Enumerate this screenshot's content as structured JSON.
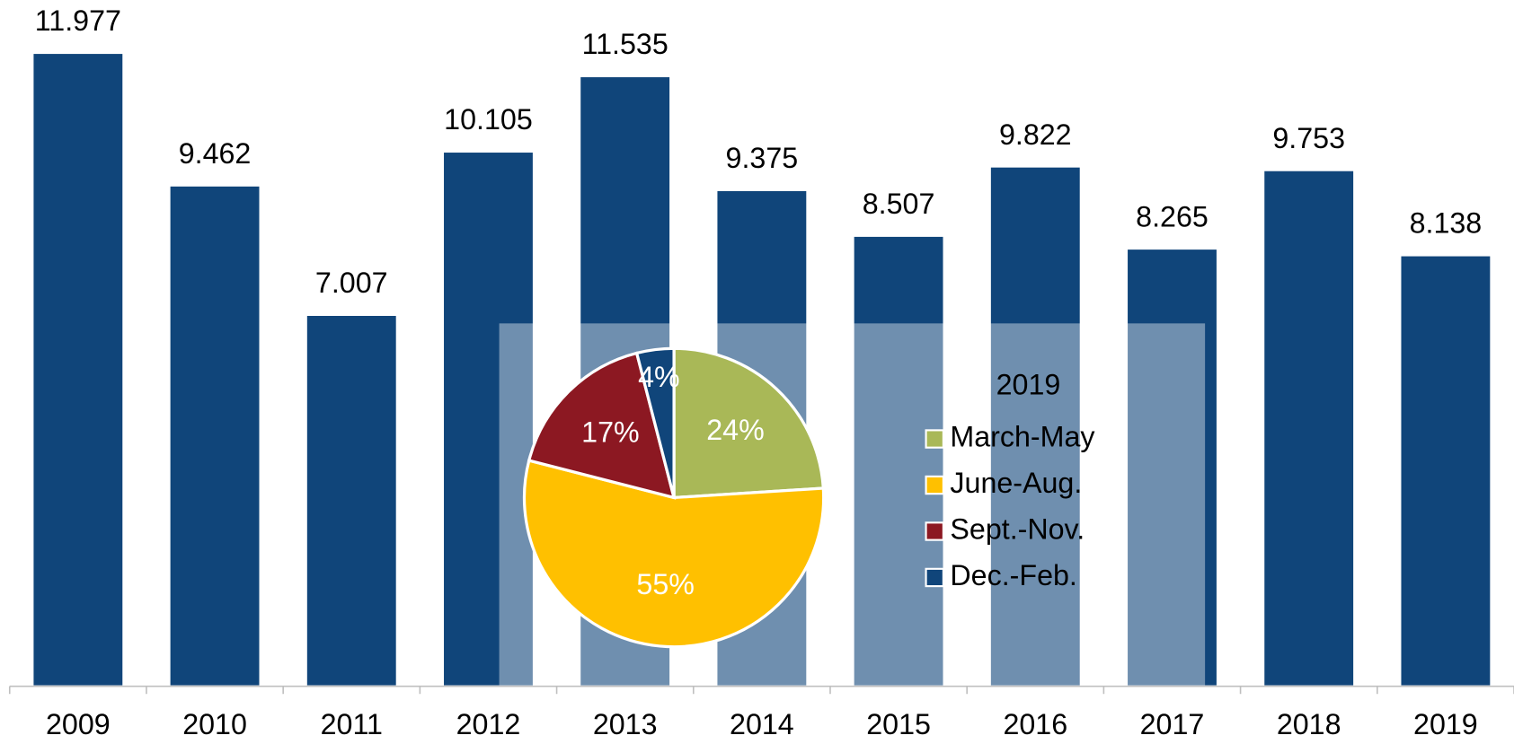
{
  "chart_data": [
    {
      "type": "bar",
      "categories": [
        "2009",
        "2010",
        "2011",
        "2012",
        "2013",
        "2014",
        "2015",
        "2016",
        "2017",
        "2018",
        "2019"
      ],
      "values": [
        11.977,
        9.462,
        7.007,
        10.105,
        11.535,
        9.375,
        8.507,
        9.822,
        8.265,
        9.753,
        8.138
      ],
      "color": "#10457a",
      "ylim": [
        0,
        13
      ]
    },
    {
      "type": "pie",
      "title": "2019",
      "categories": [
        "March-May",
        "June-Aug.",
        "Sept.-Nov.",
        "Dec.-Feb."
      ],
      "values": [
        24,
        55,
        17,
        4
      ],
      "value_labels": [
        "24%",
        "55%",
        "17%",
        "4%"
      ],
      "colors": [
        "#a9b857",
        "#ffc000",
        "#8c1822",
        "#10457a"
      ],
      "legend": "right"
    }
  ]
}
